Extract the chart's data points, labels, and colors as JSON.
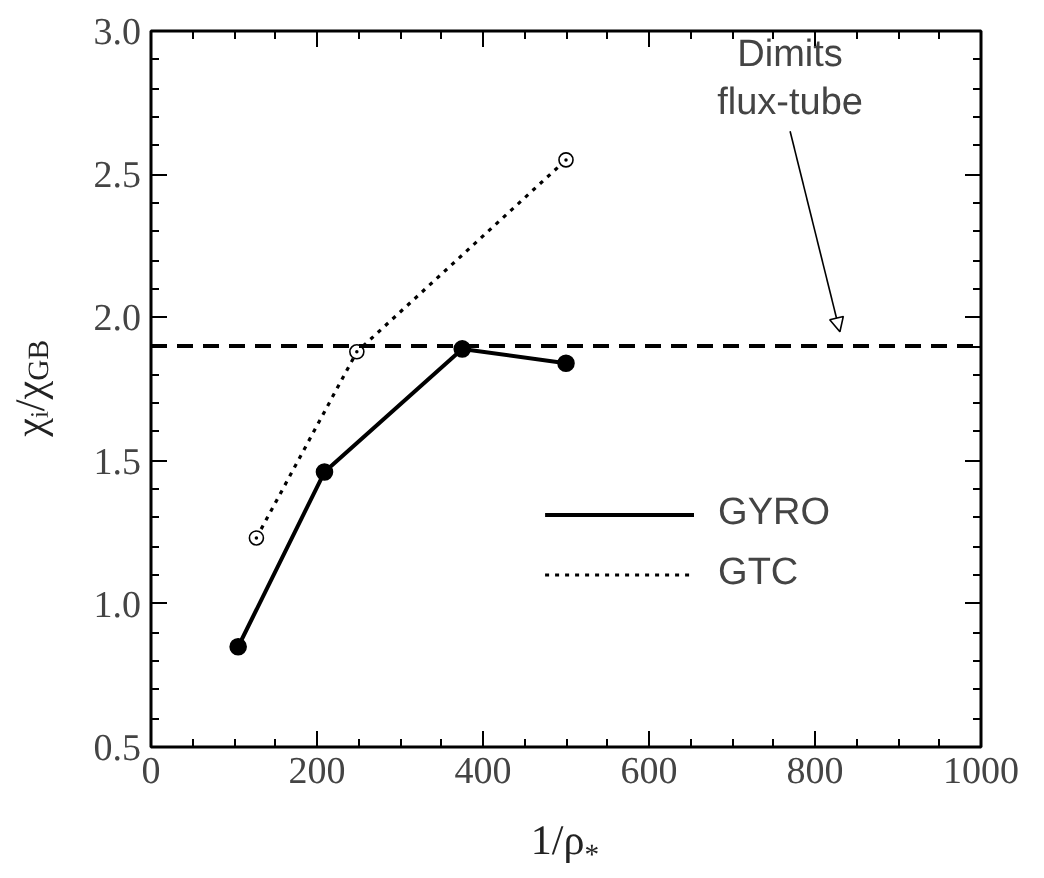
{
  "chart_data": {
    "type": "line",
    "xlabel": "1/ρ$_{*}$",
    "ylabel": "χᵢ/χ$_{GB}$",
    "xlim": [
      0,
      1000
    ],
    "xticks": [
      0,
      200,
      400,
      600,
      800,
      1000
    ],
    "ylim": [
      0.5,
      3.0
    ],
    "yticks": [
      {
        "value": 0.5,
        "label": "0.5"
      },
      {
        "value": 1.0,
        "label": "1.0"
      },
      {
        "value": 1.5,
        "label": "1.5"
      },
      {
        "value": 2.0,
        "label": "2.0"
      },
      {
        "value": 2.5,
        "label": "2.5"
      },
      {
        "value": 3.0,
        "label": "3.0"
      }
    ],
    "series": [
      {
        "name": "GYRO",
        "color": "#000000",
        "line_style": "solid",
        "marker": "circle",
        "x": [
          105,
          209,
          375,
          500
        ],
        "values": [
          0.85,
          1.46,
          1.89,
          1.84
        ]
      },
      {
        "name": "GTC",
        "color": "#000000",
        "line_style": "dotted",
        "marker": "circle",
        "x": [
          127,
          248,
          500
        ],
        "values": [
          1.23,
          1.88,
          2.55
        ]
      }
    ],
    "ref_lines": [
      {
        "axis": "y",
        "value": 1.9,
        "line_style": "dashed",
        "color": "#000000"
      }
    ],
    "annotations": [
      "Dimits\nflux-tube"
    ],
    "legend": "bottom right",
    "grid": false
  }
}
